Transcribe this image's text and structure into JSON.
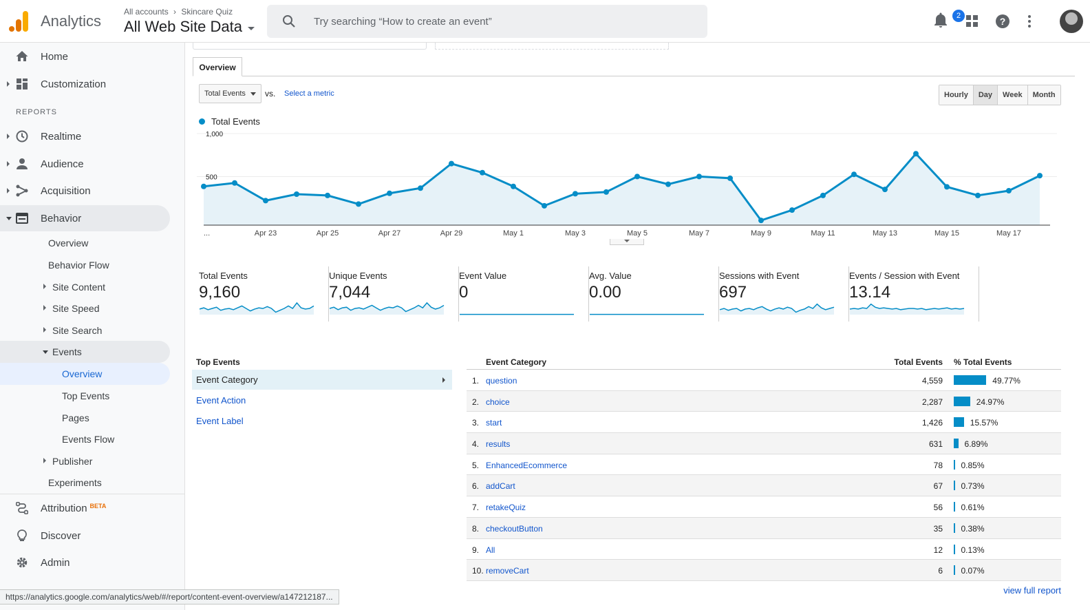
{
  "header": {
    "brand": "Analytics",
    "breadcrumb": [
      "All accounts",
      "Skincare Quiz"
    ],
    "property_view": "All Web Site Data",
    "search_placeholder": "Try searching “How to create an event”",
    "notification_count": "2",
    "icons": [
      "notifications-icon",
      "apps-icon",
      "help-icon",
      "more-vert-icon",
      "account-avatar"
    ]
  },
  "sidebar": {
    "home": "Home",
    "customization": "Customization",
    "reports_heading": "REPORTS",
    "realtime": "Realtime",
    "audience": "Audience",
    "acquisition": "Acquisition",
    "behavior": "Behavior",
    "behavior_items": {
      "overview": "Overview",
      "behavior_flow": "Behavior Flow",
      "site_content": "Site Content",
      "site_speed": "Site Speed",
      "site_search": "Site Search",
      "events": "Events",
      "events_overview": "Overview",
      "top_events": "Top Events",
      "pages": "Pages",
      "events_flow": "Events Flow",
      "publisher": "Publisher",
      "experiments": "Experiments"
    },
    "attribution": "Attribution",
    "attribution_badge": "BETA",
    "discover": "Discover",
    "admin": "Admin"
  },
  "status_url": "https://analytics.google.com/analytics/web/#/report/content-event-overview/a147212187...",
  "controls": {
    "tab": "Overview",
    "metric": "Total Events",
    "vs": "vs.",
    "select_metric": "Select a metric",
    "granularity": [
      "Hourly",
      "Day",
      "Week",
      "Month"
    ],
    "granularity_selected": "Day"
  },
  "chart_data": {
    "type": "line",
    "series": [
      {
        "name": "Total Events",
        "values": [
          450,
          490,
          285,
          360,
          345,
          245,
          370,
          430,
          715,
          610,
          450,
          225,
          365,
          385,
          565,
          475,
          565,
          545,
          55,
          175,
          345,
          590,
          415,
          830,
          445,
          345,
          400,
          575
        ]
      }
    ],
    "x_tick_labels": [
      "...",
      "Apr 23",
      "Apr 25",
      "Apr 27",
      "Apr 29",
      "May 1",
      "May 3",
      "May 5",
      "May 7",
      "May 9",
      "May 11",
      "May 13",
      "May 15",
      "May 17"
    ],
    "y_tick_labels": [
      "1,000",
      "500"
    ],
    "ylim": [
      0,
      1000
    ],
    "color": "#058dc7",
    "legend": "top-left",
    "grid": true
  },
  "scorecards": [
    {
      "label": "Total Events",
      "value": "9,160",
      "trend": [
        0.45,
        0.55,
        0.4,
        0.5,
        0.6,
        0.35,
        0.45,
        0.5,
        0.4,
        0.55,
        0.7,
        0.5,
        0.3,
        0.45,
        0.55,
        0.5,
        0.65,
        0.5,
        0.2,
        0.35,
        0.5,
        0.7,
        0.5,
        0.95,
        0.55,
        0.45,
        0.5,
        0.7
      ]
    },
    {
      "label": "Unique Events",
      "value": "7,044",
      "trend": [
        0.5,
        0.6,
        0.4,
        0.55,
        0.6,
        0.35,
        0.5,
        0.55,
        0.45,
        0.6,
        0.75,
        0.55,
        0.35,
        0.5,
        0.6,
        0.55,
        0.7,
        0.55,
        0.25,
        0.4,
        0.55,
        0.75,
        0.55,
        0.95,
        0.6,
        0.45,
        0.55,
        0.75
      ]
    },
    {
      "label": "Event Value",
      "value": "0",
      "trend": [
        0.02,
        0.02,
        0.02,
        0.02,
        0.02,
        0.02,
        0.02,
        0.02,
        0.02,
        0.02,
        0.02,
        0.02,
        0.02,
        0.02,
        0.02,
        0.02,
        0.02,
        0.02,
        0.02,
        0.02,
        0.02,
        0.02,
        0.02,
        0.02,
        0.02,
        0.02,
        0.02,
        0.02
      ]
    },
    {
      "label": "Avg. Value",
      "value": "0.00",
      "trend": [
        0.02,
        0.02,
        0.02,
        0.02,
        0.02,
        0.02,
        0.02,
        0.02,
        0.02,
        0.02,
        0.02,
        0.02,
        0.02,
        0.02,
        0.02,
        0.02,
        0.02,
        0.02,
        0.02,
        0.02,
        0.02,
        0.02,
        0.02,
        0.02,
        0.02,
        0.02,
        0.02,
        0.02
      ]
    },
    {
      "label": "Sessions with Event",
      "value": "697",
      "trend": [
        0.4,
        0.5,
        0.35,
        0.45,
        0.5,
        0.3,
        0.45,
        0.5,
        0.4,
        0.55,
        0.65,
        0.45,
        0.3,
        0.45,
        0.55,
        0.45,
        0.6,
        0.5,
        0.2,
        0.35,
        0.45,
        0.65,
        0.5,
        0.85,
        0.55,
        0.4,
        0.5,
        0.6
      ]
    },
    {
      "label": "Events / Session with Event",
      "value": "13.14",
      "trend": [
        0.45,
        0.5,
        0.45,
        0.55,
        0.5,
        0.85,
        0.6,
        0.5,
        0.55,
        0.5,
        0.45,
        0.5,
        0.4,
        0.45,
        0.5,
        0.5,
        0.45,
        0.5,
        0.4,
        0.45,
        0.5,
        0.45,
        0.5,
        0.55,
        0.45,
        0.5,
        0.45,
        0.5
      ]
    }
  ],
  "top_events": {
    "heading": "Top Events",
    "items": [
      "Event Category",
      "Event Action",
      "Event Label"
    ]
  },
  "table": {
    "columns": [
      "Event Category",
      "Total Events",
      "% Total Events"
    ],
    "rows": [
      {
        "rank": "1.",
        "category": "question",
        "total": "4,559",
        "pct": "49.77%",
        "share": 49.77
      },
      {
        "rank": "2.",
        "category": "choice",
        "total": "2,287",
        "pct": "24.97%",
        "share": 24.97
      },
      {
        "rank": "3.",
        "category": "start",
        "total": "1,426",
        "pct": "15.57%",
        "share": 15.57
      },
      {
        "rank": "4.",
        "category": "results",
        "total": "631",
        "pct": "6.89%",
        "share": 6.89
      },
      {
        "rank": "5.",
        "category": "EnhancedEcommerce",
        "total": "78",
        "pct": "0.85%",
        "share": 0.85
      },
      {
        "rank": "6.",
        "category": "addCart",
        "total": "67",
        "pct": "0.73%",
        "share": 0.73
      },
      {
        "rank": "7.",
        "category": "retakeQuiz",
        "total": "56",
        "pct": "0.61%",
        "share": 0.61
      },
      {
        "rank": "8.",
        "category": "checkoutButton",
        "total": "35",
        "pct": "0.38%",
        "share": 0.38
      },
      {
        "rank": "9.",
        "category": "All",
        "total": "12",
        "pct": "0.13%",
        "share": 0.13
      },
      {
        "rank": "10.",
        "category": "removeCart",
        "total": "6",
        "pct": "0.07%",
        "share": 0.07
      }
    ],
    "view_full": "view full report"
  }
}
